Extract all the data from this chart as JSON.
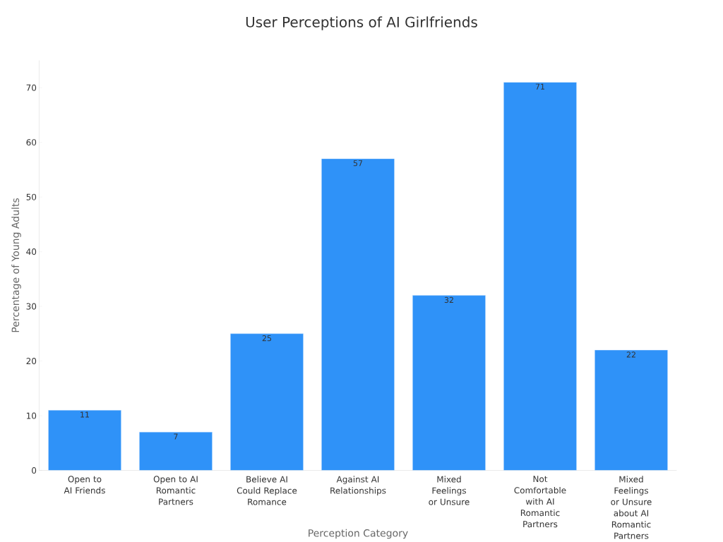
{
  "chart_data": {
    "type": "bar",
    "title": "User Perceptions of AI Girlfriends",
    "xlabel": "Perception Category",
    "ylabel": "Percentage of Young Adults",
    "categories": [
      "Open to AI Friends",
      "Open to AI Romantic Partners",
      "Believe AI Could Replace Romance",
      "Against AI Relationships",
      "Mixed Feelings or Unsure",
      "Not Comfortable with AI Romantic Partners",
      "Mixed Feelings or Unsure about AI Romantic Partners"
    ],
    "values": [
      11,
      7,
      25,
      57,
      32,
      71,
      22
    ],
    "color": "#2f92f8",
    "ylim": [
      0,
      75
    ],
    "yticks": [
      0,
      10,
      20,
      30,
      40,
      50,
      60,
      70
    ],
    "data_labels": true,
    "grid": false
  }
}
